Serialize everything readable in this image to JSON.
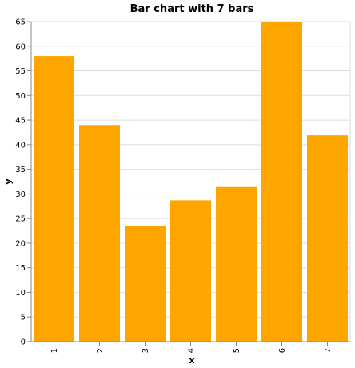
{
  "chart_data": {
    "type": "bar",
    "title": "Bar chart with 7 bars",
    "xlabel": "x",
    "ylabel": "y",
    "categories": [
      "1",
      "2",
      "3",
      "4",
      "5",
      "6",
      "7"
    ],
    "values": [
      58,
      44,
      23.5,
      28.7,
      31.4,
      65,
      41.9
    ],
    "ylim": [
      0,
      65
    ],
    "yticks": [
      0,
      5,
      10,
      15,
      20,
      25,
      30,
      35,
      40,
      45,
      50,
      55,
      60,
      65
    ],
    "grid": true,
    "bar_color": "#FFA500"
  }
}
